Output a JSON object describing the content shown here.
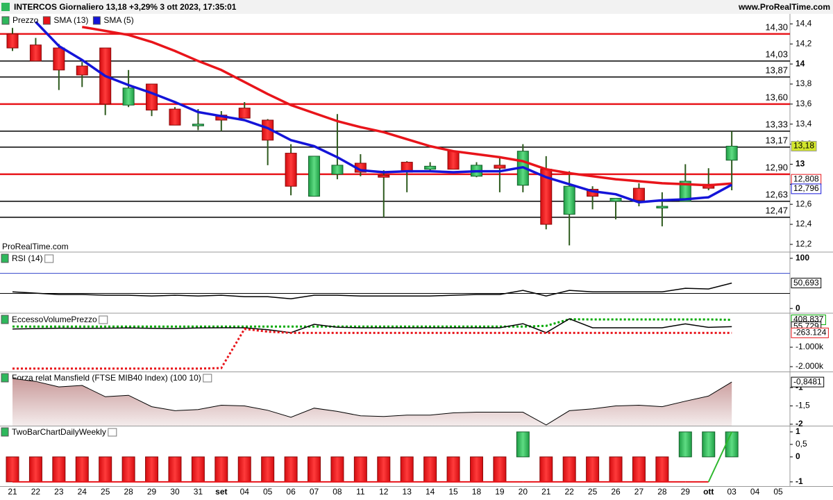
{
  "header": {
    "title": "INTERCOS Giornaliero 13,18 +3,29% 3 ott 2023, 17:35:01",
    "site": "www.ProRealTime.com",
    "watermark": "ProRealTime.com"
  },
  "chart_data": [
    {
      "type": "candlestick",
      "name": "Prezzo",
      "categories": [
        "21",
        "22",
        "23",
        "24",
        "25",
        "28",
        "29",
        "30",
        "31",
        "set",
        "04",
        "05",
        "06",
        "07",
        "08",
        "11",
        "12",
        "13",
        "14",
        "15",
        "18",
        "19",
        "20",
        "21",
        "22",
        "25",
        "26",
        "27",
        "28",
        "29",
        "ott",
        "03",
        "04",
        "05"
      ],
      "open": [
        14.3,
        14.19,
        14.16,
        13.98,
        14.16,
        13.59,
        13.8,
        13.55,
        13.39,
        13.49,
        13.56,
        13.44,
        13.11,
        12.68,
        12.9,
        13.01,
        12.89,
        13.02,
        12.95,
        13.13,
        12.88,
        12.99,
        12.79,
        12.95,
        12.5,
        12.75,
        12.63,
        12.76,
        12.57,
        12.63,
        12.8,
        13.04,
        null,
        null
      ],
      "high": [
        14.36,
        14.26,
        14.2,
        14.02,
        14.16,
        13.94,
        13.8,
        13.57,
        13.55,
        13.53,
        13.62,
        13.45,
        13.2,
        13.08,
        13.5,
        13.1,
        12.94,
        13.03,
        13.02,
        13.13,
        13.02,
        13.08,
        13.2,
        13.08,
        12.93,
        12.78,
        12.66,
        12.81,
        12.72,
        13.0,
        12.96,
        13.33,
        null,
        null
      ],
      "low": [
        14.13,
        14.03,
        13.74,
        13.77,
        13.49,
        13.57,
        13.48,
        13.39,
        13.34,
        13.33,
        13.46,
        12.99,
        12.69,
        12.68,
        12.85,
        12.88,
        12.47,
        12.72,
        12.92,
        12.95,
        12.87,
        12.72,
        12.72,
        12.35,
        12.19,
        12.55,
        12.45,
        12.58,
        12.38,
        12.63,
        12.74,
        12.74,
        null,
        null
      ],
      "close": [
        14.16,
        14.03,
        13.94,
        13.89,
        13.6,
        13.76,
        13.54,
        13.39,
        13.4,
        13.44,
        13.46,
        13.24,
        12.78,
        13.08,
        12.99,
        12.92,
        12.87,
        12.92,
        12.98,
        12.95,
        12.99,
        12.96,
        13.13,
        12.4,
        12.78,
        12.68,
        12.66,
        12.64,
        12.58,
        12.83,
        12.76,
        13.18,
        null,
        null
      ],
      "last_label": "13,18",
      "colors": {
        "up": "#2eb85c",
        "down": "#e8141a",
        "wick": "#2d5a1d",
        "tag": "#d2e62d"
      },
      "series": [
        {
          "name": "SMA (13)",
          "color": "#e8141a",
          "values": [
            null,
            null,
            null,
            14.37,
            14.33,
            14.29,
            14.22,
            14.13,
            14.03,
            13.94,
            13.82,
            13.7,
            13.59,
            13.51,
            13.43,
            13.37,
            13.32,
            13.25,
            13.18,
            13.13,
            13.1,
            13.07,
            13.03,
            12.95,
            12.91,
            12.88,
            12.85,
            12.83,
            12.81,
            12.8,
            12.79,
            12.808,
            null,
            null
          ],
          "last_label": "12,808"
        },
        {
          "name": "SMA (5)",
          "color": "#1414d8",
          "values": [
            null,
            14.42,
            14.18,
            14.04,
            13.88,
            13.79,
            13.71,
            13.62,
            13.52,
            13.48,
            13.44,
            13.36,
            13.24,
            13.18,
            13.07,
            12.94,
            12.92,
            12.93,
            12.93,
            12.92,
            12.93,
            12.93,
            12.97,
            12.87,
            12.8,
            12.73,
            12.7,
            12.62,
            12.64,
            12.65,
            12.67,
            12.796,
            null,
            null
          ],
          "last_label": "12,796"
        }
      ],
      "levels": [
        {
          "value": 14.3,
          "label": "14,30",
          "color": "#e8141a"
        },
        {
          "value": 14.03,
          "label": "14,03",
          "color": "#000000"
        },
        {
          "value": 13.87,
          "label": "13,87",
          "color": "#000000"
        },
        {
          "value": 13.6,
          "label": "13,60",
          "color": "#e8141a"
        },
        {
          "value": 13.33,
          "label": "13,33",
          "color": "#000000"
        },
        {
          "value": 13.17,
          "label": "13,17",
          "color": "#000000"
        },
        {
          "value": 12.9,
          "label": "12,90",
          "color": "#e8141a"
        },
        {
          "value": 12.63,
          "label": "12,63",
          "color": "#000000"
        },
        {
          "value": 12.47,
          "label": "12,47",
          "color": "#000000"
        }
      ],
      "ylim": [
        12.13,
        14.5
      ],
      "yticks": [
        {
          "value": 14.4,
          "label": "14,4"
        },
        {
          "value": 14.2,
          "label": "14,2"
        },
        14,
        {
          "value": 13.8,
          "label": "13,8"
        },
        {
          "value": 13.6,
          "label": "13,6"
        },
        {
          "value": 13.4,
          "label": "13,4"
        },
        {
          "value": 13.2,
          "label": "13,2"
        },
        13,
        {
          "value": 12.8,
          "label": "12,8"
        },
        {
          "value": 12.6,
          "label": "12,6"
        },
        {
          "value": 12.4,
          "label": "12,4"
        },
        {
          "value": 12.2,
          "label": "12,2"
        }
      ]
    },
    {
      "type": "line",
      "title": "RSI (14)",
      "ylim": [
        -8,
        111
      ],
      "yticks": [
        100,
        0
      ],
      "levels": [
        {
          "value": 70,
          "color": "#3344cc"
        },
        {
          "value": 30,
          "color": "#000000"
        }
      ],
      "series": [
        {
          "color": "#000000",
          "style": "solid",
          "values": [
            33.3,
            30.6,
            27.8,
            27.8,
            26.4,
            26.4,
            25,
            26.4,
            25,
            26.4,
            23.6,
            23.6,
            19.4,
            26.4,
            26.4,
            25,
            25,
            25,
            25,
            26.4,
            27.8,
            27.8,
            36.1,
            25,
            36.1,
            33.3,
            33.3,
            33.3,
            33.3,
            40.3,
            38.9,
            50.693,
            null,
            null
          ],
          "last_label": "50,693"
        }
      ]
    },
    {
      "type": "line",
      "title": "EccessoVolumePrezzo",
      "ylim": [
        -2250,
        714
      ],
      "yticks": [
        {
          "value": -1000,
          "label": "-1.000k"
        },
        {
          "value": -2000,
          "label": "-2.000k"
        }
      ],
      "series": [
        {
          "color": "#00aa00",
          "style": "dotted",
          "values": [
            60,
            60,
            60,
            60,
            60,
            60,
            60,
            60,
            60,
            60,
            60,
            60,
            60,
            60,
            60,
            60,
            60,
            60,
            60,
            60,
            60,
            60,
            60,
            100,
            440,
            430,
            430,
            430,
            430,
            430,
            430,
            408.837,
            null,
            null
          ],
          "last_label": "408.837"
        },
        {
          "color": "#000000",
          "style": "solid",
          "values": [
            -60,
            -40,
            -20,
            -30,
            -20,
            -10,
            -30,
            -40,
            -10,
            0,
            0,
            -100,
            -250,
            180,
            30,
            0,
            0,
            0,
            0,
            0,
            0,
            0,
            210,
            -250,
            460,
            0,
            0,
            0,
            0,
            200,
            20,
            55.729,
            null,
            null
          ],
          "last_label": "55.729"
        },
        {
          "color": "#e8141a",
          "style": "dotted",
          "values": [
            -2100,
            -2100,
            -2100,
            -2100,
            -2100,
            -2100,
            -2100,
            -2100,
            -2100,
            -2070,
            -60,
            -200,
            -263,
            -263,
            -263,
            -263,
            -263,
            -263,
            -263,
            -263,
            -263,
            -263,
            -263,
            -263,
            -263,
            -263,
            -263,
            -263,
            -263,
            -263,
            -263,
            -263.124,
            null,
            null
          ],
          "last_label": "-263.124"
        }
      ]
    },
    {
      "type": "area",
      "title": "Forza relat Mansfield (FTSE MIB40 Index) (100 10)",
      "ylim": [
        -2.04,
        -0.58
      ],
      "yticks": [
        -1,
        {
          "value": -1.5,
          "label": "-1,5"
        },
        -2
      ],
      "series": [
        {
          "color": "#000000",
          "fill": "#c99a9a",
          "values": [
            -0.75,
            -0.83,
            -0.98,
            -0.94,
            -1.25,
            -1.21,
            -1.52,
            -1.63,
            -1.6,
            -1.48,
            -1.5,
            -1.62,
            -1.81,
            -1.56,
            -1.65,
            -1.77,
            -1.79,
            -1.75,
            -1.75,
            -1.69,
            -1.67,
            -1.67,
            -1.67,
            -2.02,
            -1.63,
            -1.58,
            -1.5,
            -1.48,
            -1.52,
            -1.37,
            -1.23,
            -0.8481,
            null,
            null
          ],
          "last_label": "-0,8481"
        }
      ]
    },
    {
      "type": "bar",
      "title": "TwoBarChartDailyWeekly",
      "ylim": [
        -1.17,
        1.22
      ],
      "yticks": [
        1,
        {
          "value": 0.5,
          "label": "0,5"
        },
        0,
        -1
      ],
      "colors": {
        "up": "#2eb82e",
        "down": "#e8141a"
      },
      "values": [
        -1,
        -1,
        -1,
        -1,
        -1,
        -1,
        -1,
        -1,
        -1,
        -1,
        -1,
        -1,
        -1,
        -1,
        -1,
        -1,
        -1,
        -1,
        -1,
        -1,
        -1,
        -1,
        1,
        -1,
        -1,
        -1,
        -1,
        -1,
        -1,
        1,
        1,
        1,
        null,
        null
      ],
      "line_values": [
        -1,
        -1,
        -1,
        -1,
        -1,
        -1,
        -1,
        -1,
        -1,
        -1,
        -1,
        -1,
        -1,
        -1,
        -1,
        -1,
        -1,
        -1,
        -1,
        -1,
        -1,
        -1,
        -1,
        -1,
        -1,
        -1,
        -1,
        -1,
        -1,
        -1,
        -1,
        1,
        null,
        null
      ]
    }
  ]
}
